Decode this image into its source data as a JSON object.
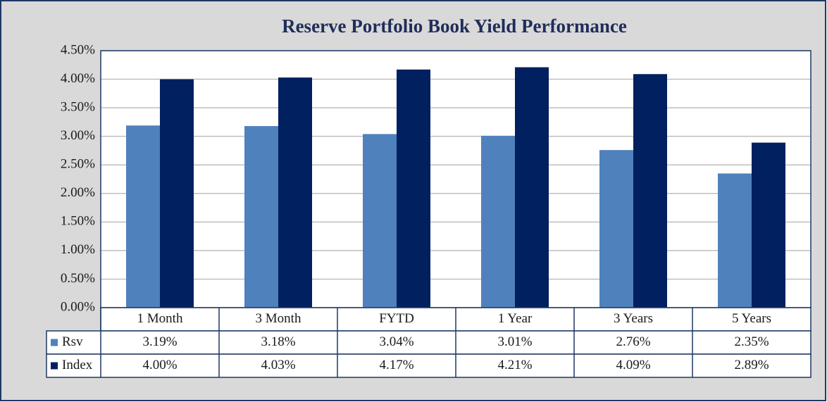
{
  "chart_data": {
    "type": "bar",
    "title": "Reserve  Portfolio Book Yield Performance",
    "categories": [
      "1 Month",
      "3 Month",
      "FYTD",
      "1 Year",
      "3 Years",
      "5 Years"
    ],
    "series": [
      {
        "name": "Rsv",
        "color": "#4f81bd",
        "values": [
          3.19,
          3.18,
          3.04,
          3.01,
          2.76,
          2.35
        ],
        "value_labels": [
          "3.19%",
          "3.18%",
          "3.04%",
          "3.01%",
          "2.76%",
          "2.35%"
        ]
      },
      {
        "name": "Index",
        "color": "#002060",
        "values": [
          4.0,
          4.03,
          4.17,
          4.21,
          4.09,
          2.89
        ],
        "value_labels": [
          "4.00%",
          "4.03%",
          "4.17%",
          "4.21%",
          "4.09%",
          "2.89%"
        ]
      }
    ],
    "ylim": [
      0,
      4.5
    ],
    "yticks": [
      {
        "value": 0,
        "label": "0.00%"
      },
      {
        "value": 0.5,
        "label": "0.50%"
      },
      {
        "value": 1,
        "label": "1.00%"
      },
      {
        "value": 1.5,
        "label": "1.50%"
      },
      {
        "value": 2,
        "label": "2.00%"
      },
      {
        "value": 2.5,
        "label": "2.50%"
      },
      {
        "value": 3,
        "label": "3.00%"
      },
      {
        "value": 3.5,
        "label": "3.50%"
      },
      {
        "value": 4,
        "label": "4.00%"
      },
      {
        "value": 4.5,
        "label": "4.50%"
      }
    ],
    "grid": true
  }
}
